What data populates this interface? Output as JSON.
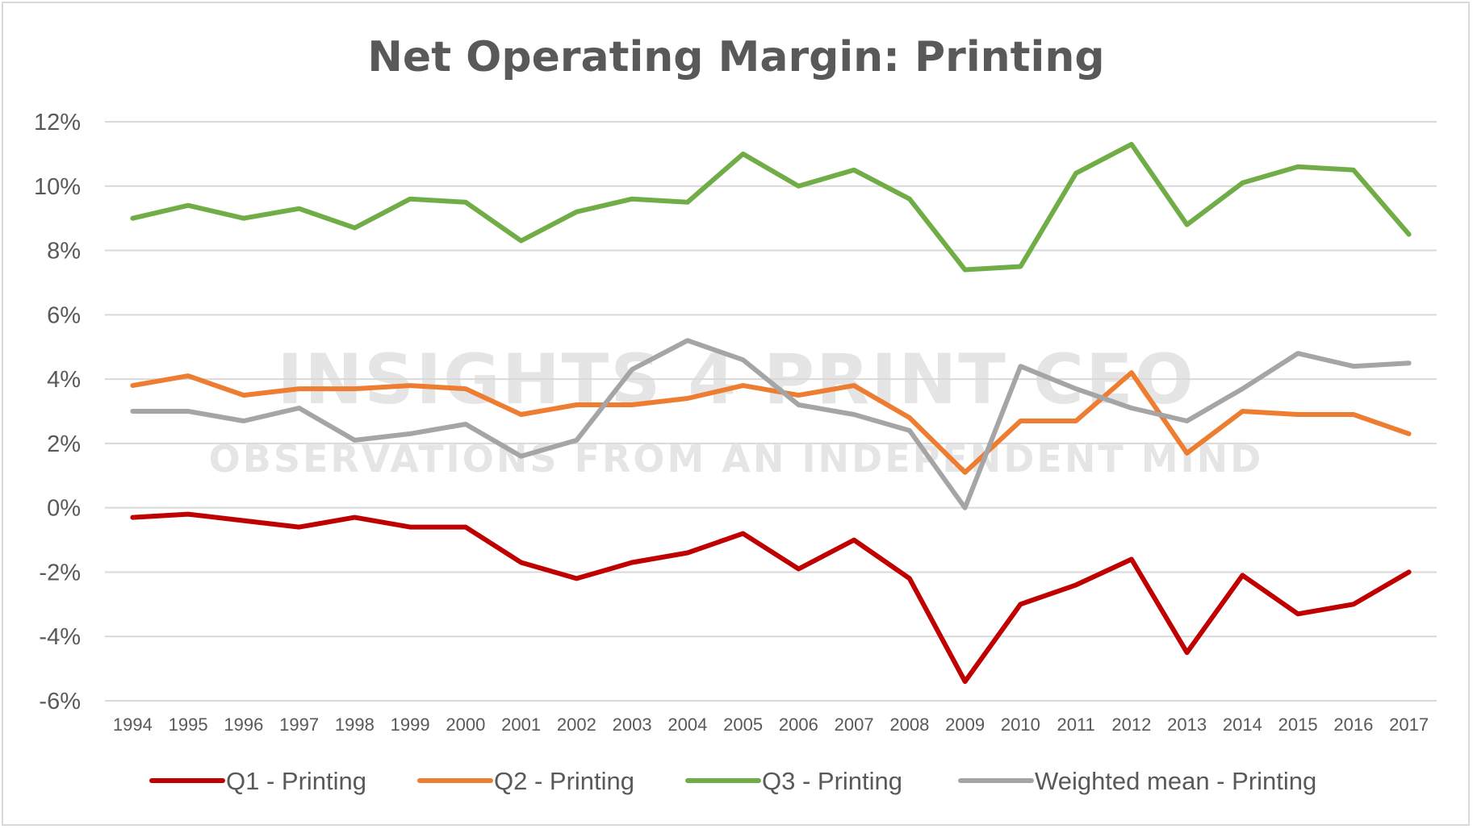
{
  "chart_data": {
    "type": "line",
    "title": "Net Operating Margin: Printing",
    "watermark": {
      "line1": "INSIGHTS 4 PRINT CEO",
      "line2": "OBSERVATIONS FROM AN INDEPENDENT MIND"
    },
    "ylim": [
      -6,
      12
    ],
    "yticks": [
      12,
      10,
      8,
      6,
      4,
      2,
      0,
      -2,
      -4,
      -6
    ],
    "ytick_labels": [
      "12%",
      "10%",
      "8%",
      "6%",
      "4%",
      "2%",
      "0%",
      "-2%",
      "-4%",
      "-6%"
    ],
    "grid": true,
    "legend_position": "bottom",
    "x": [
      "1994",
      "1995",
      "1996",
      "1997",
      "1998",
      "1999",
      "2000",
      "2001",
      "2002",
      "2003",
      "2004",
      "2005",
      "2006",
      "2007",
      "2008",
      "2009",
      "2010",
      "2011",
      "2012",
      "2013",
      "2014",
      "2015",
      "2016",
      "2017"
    ],
    "series": [
      {
        "name": "Q1 - Printing",
        "color": "#c00000",
        "values": [
          -0.3,
          -0.2,
          -0.4,
          -0.6,
          -0.3,
          -0.6,
          -0.6,
          -1.7,
          -2.2,
          -1.7,
          -1.4,
          -0.8,
          -1.9,
          -1.0,
          -2.2,
          -5.4,
          -3.0,
          -2.4,
          -1.6,
          -4.5,
          -2.1,
          -3.3,
          -3.0,
          -2.0
        ]
      },
      {
        "name": "Q2 - Printing",
        "color": "#ed7d31",
        "values": [
          3.8,
          4.1,
          3.5,
          3.7,
          3.7,
          3.8,
          3.7,
          2.9,
          3.2,
          3.2,
          3.4,
          3.8,
          3.5,
          3.8,
          2.8,
          1.1,
          2.7,
          2.7,
          4.2,
          1.7,
          3.0,
          2.9,
          2.9,
          2.3
        ]
      },
      {
        "name": "Q3 - Printing",
        "color": "#70ad47",
        "values": [
          9.0,
          9.4,
          9.0,
          9.3,
          8.7,
          9.6,
          9.5,
          8.3,
          9.2,
          9.6,
          9.5,
          11.0,
          10.0,
          10.5,
          9.6,
          7.4,
          7.5,
          10.4,
          11.3,
          8.8,
          10.1,
          10.6,
          10.5,
          8.5
        ]
      },
      {
        "name": "Weighted mean - Printing",
        "color": "#a5a5a5",
        "values": [
          3.0,
          3.0,
          2.7,
          3.1,
          2.1,
          2.3,
          2.6,
          1.6,
          2.1,
          4.3,
          5.2,
          4.6,
          3.2,
          2.9,
          2.4,
          0.0,
          4.4,
          3.7,
          3.1,
          2.7,
          3.7,
          4.8,
          4.4,
          4.5
        ]
      }
    ]
  }
}
